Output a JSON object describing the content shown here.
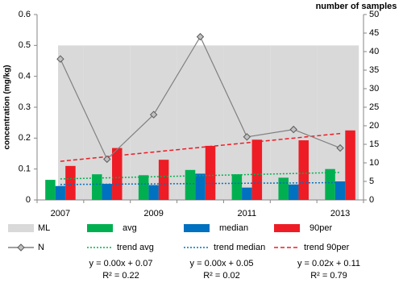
{
  "chart_data": {
    "type": "bar",
    "ylabel": "concentration (mg/kg)",
    "y2label": "number of samples",
    "categories": [
      "2007",
      null,
      "2009",
      null,
      "2011",
      null,
      "2013"
    ],
    "ylim": [
      0,
      0.6
    ],
    "yticks": [
      0,
      0.1,
      0.2,
      0.3,
      0.4,
      0.5,
      0.6
    ],
    "y2lim": [
      0,
      50
    ],
    "y2ticks": [
      0,
      5,
      10,
      15,
      20,
      25,
      30,
      35,
      40,
      45,
      50
    ],
    "grid": false,
    "legend": "bottom",
    "series": [
      {
        "name": "ML",
        "type": "area",
        "color": "#d9d9d9",
        "values": [
          0.5,
          0.5,
          0.5,
          0.5,
          0.5,
          0.5,
          0.5
        ]
      },
      {
        "name": "avg",
        "type": "bar",
        "color": "#00b050",
        "values": [
          0.065,
          0.083,
          0.08,
          0.097,
          0.083,
          0.072,
          0.1
        ]
      },
      {
        "name": "median",
        "type": "bar",
        "color": "#0070c0",
        "values": [
          0.045,
          0.052,
          0.048,
          0.085,
          0.04,
          0.05,
          0.06
        ]
      },
      {
        "name": "90per",
        "type": "bar",
        "color": "#ee1c25",
        "values": [
          0.11,
          0.168,
          0.13,
          0.175,
          0.195,
          0.193,
          0.225
        ]
      },
      {
        "name": "N",
        "type": "line",
        "color": "#808080",
        "marker": "diamond",
        "axis": "y2",
        "values": [
          38,
          11,
          23,
          44,
          17,
          19,
          14
        ]
      },
      {
        "name": "trend avg",
        "type": "line",
        "color": "#00b050",
        "dash": "dotted",
        "values": [
          0.068,
          0.0715,
          0.075,
          0.0785,
          0.082,
          0.0855,
          0.089
        ]
      },
      {
        "name": "trend median",
        "type": "line",
        "color": "#0070c0",
        "dash": "dotted",
        "values": [
          0.05,
          0.051,
          0.052,
          0.053,
          0.054,
          0.055,
          0.056
        ]
      },
      {
        "name": "trend 90per",
        "type": "line",
        "color": "#ee1c25",
        "dash": "dashed",
        "values": [
          0.125,
          0.14,
          0.155,
          0.17,
          0.185,
          0.2,
          0.215
        ]
      }
    ],
    "trend_labels": [
      [
        "y = 0.00x + 0.07",
        "R² = 0.22"
      ],
      [
        "y = 0.00x + 0.05",
        "R² = 0.02"
      ],
      [
        "y = 0.02x + 0.11",
        "R² = 0.79"
      ]
    ]
  }
}
